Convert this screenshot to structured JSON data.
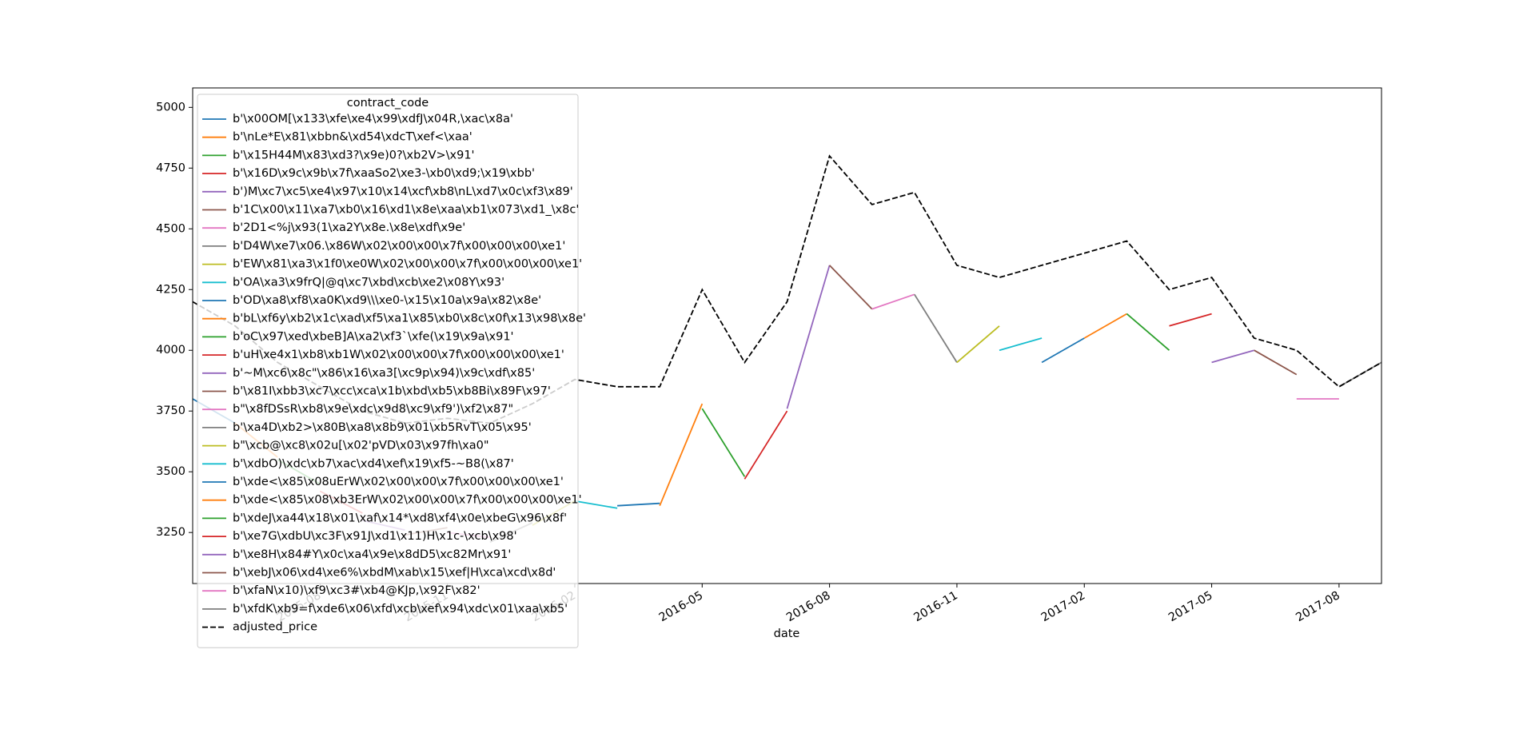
{
  "chart_data": {
    "type": "line",
    "x_label": "date",
    "legend_title": "contract_code",
    "legend": "upper left",
    "xlim": [
      "2015-05",
      "2017-09"
    ],
    "xticks": [
      "2015-08",
      "2015-11",
      "2016-02",
      "2016-05",
      "2016-08",
      "2016-11",
      "2017-02",
      "2017-05",
      "2017-08"
    ],
    "ylim": [
      3040,
      5080
    ],
    "yticks": [
      3250,
      3500,
      3750,
      4000,
      4250,
      4500,
      4750,
      5000
    ],
    "series": [
      {
        "name": "b'\\x00OM[\\x133\\xfe\\xe4\\x99\\xdfJ\\x04R,\\xac\\x8a'",
        "color": "#1f77b4",
        "x": [
          "2015-05",
          "2015-06"
        ],
        "values": [
          3800,
          3700
        ]
      },
      {
        "name": "b'\\nLe*E\\x81\\xbbn&\\xd54\\xdcT\\xef<\\xaa'",
        "color": "#ff7f0e",
        "x": [
          "2015-06",
          "2015-07"
        ],
        "values": [
          3700,
          3560
        ]
      },
      {
        "name": "b'\\x15H44M\\x83\\xd3?\\x9e)0?\\xb2V>\\x91'",
        "color": "#2ca02c",
        "x": [
          "2015-07",
          "2015-08"
        ],
        "values": [
          3550,
          3450
        ]
      },
      {
        "name": "b'\\x16D\\x9c\\x9b\\x7f\\xaaSo2\\xe3-\\xb0\\xd9;\\x19\\xbb'",
        "color": "#d62728",
        "x": [
          "2015-08",
          "2015-09"
        ],
        "values": [
          3420,
          3330
        ]
      },
      {
        "name": "b')M\\xc7\\xc5\\xe4\\x97\\x10\\x14\\xcf\\xb8\\nL\\xd7\\x0c\\xf3\\x89'",
        "color": "#9467bd",
        "x": [
          "2015-09",
          "2015-10"
        ],
        "values": [
          3300,
          3260
        ]
      },
      {
        "name": "b'1C\\x00\\x11\\xa7\\xb0\\x16\\xd1\\x8e\\xaa\\xb1\\x073\\xd1_\\x8c'",
        "color": "#8c564b",
        "x": [
          "2015-10",
          "2015-11"
        ],
        "values": [
          3240,
          3270
        ]
      },
      {
        "name": "b'2D1<%j\\x93(1\\xa2Y\\x8e.\\x8e\\xdf\\x9e'",
        "color": "#e377c2",
        "x": [
          "2015-11",
          "2015-12"
        ],
        "values": [
          3250,
          3230
        ]
      },
      {
        "name": "b'D4W\\xe7\\x06.\\x86W\\x02\\x00\\x00\\x7f\\x00\\x00\\x00\\xe1'",
        "color": "#7f7f7f",
        "x": [
          "2015-12",
          "2016-01"
        ],
        "values": [
          3210,
          3290
        ]
      },
      {
        "name": "b'EW\\x81\\xa3\\x1f0\\xe0W\\x02\\x00\\x00\\x7f\\x00\\x00\\x00\\xe1'",
        "color": "#bcbd22",
        "x": [
          "2016-01",
          "2016-02"
        ],
        "values": [
          3280,
          3380
        ]
      },
      {
        "name": "b'OA\\xa3\\x9frQ|@q\\xc7\\xbd\\xcb\\xe2\\x08Y\\x93'",
        "color": "#17becf",
        "x": [
          "2016-02",
          "2016-03"
        ],
        "values": [
          3380,
          3350
        ]
      },
      {
        "name": "b'OD\\xa8\\xf8\\xa0K\\xd9\\\\\\xe0-\\x15\\x10a\\x9a\\x82\\x8e'",
        "color": "#1f77b4",
        "x": [
          "2016-03",
          "2016-04"
        ],
        "values": [
          3360,
          3370
        ]
      },
      {
        "name": "b'bL\\xf6y\\xb2\\x1c\\xad\\xf5\\xa1\\x85\\xb0\\x8c\\x0f\\x13\\x98\\x8e'",
        "color": "#ff7f0e",
        "x": [
          "2016-04",
          "2016-05"
        ],
        "values": [
          3360,
          3780
        ]
      },
      {
        "name": "b'oC\\x97\\xed\\xbeB]A\\xa2\\xf3`\\xfe(\\x19\\x9a\\x91'",
        "color": "#2ca02c",
        "x": [
          "2016-05",
          "2016-06"
        ],
        "values": [
          3760,
          3480
        ]
      },
      {
        "name": "b'uH\\xe4x1\\xb8\\xb1W\\x02\\x00\\x00\\x7f\\x00\\x00\\x00\\xe1'",
        "color": "#d62728",
        "x": [
          "2016-06",
          "2016-07"
        ],
        "values": [
          3470,
          3750
        ]
      },
      {
        "name": "b'~M\\xc6\\x8c\"\\x86\\x16\\xa3[\\xc9p\\x94)\\x9c\\xdf\\x85'",
        "color": "#9467bd",
        "x": [
          "2016-07",
          "2016-08"
        ],
        "values": [
          3760,
          4350
        ]
      },
      {
        "name": "b'\\x81I\\xbb3\\xc7\\xcc\\xca\\x1b\\xbd\\xb5\\xb8Bi\\x89F\\x97'",
        "color": "#8c564b",
        "x": [
          "2016-08",
          "2016-09"
        ],
        "values": [
          4350,
          4170
        ]
      },
      {
        "name": "b\"\\x8fDSsR\\xb8\\x9e\\xdc\\x9d8\\xc9\\xf9')\\xf2\\x87\"",
        "color": "#e377c2",
        "x": [
          "2016-09",
          "2016-10"
        ],
        "values": [
          4170,
          4230
        ]
      },
      {
        "name": "b'\\xa4D\\xb2>\\x80B\\xa8\\x8b9\\x01\\xb5RvT\\x05\\x95'",
        "color": "#7f7f7f",
        "x": [
          "2016-10",
          "2016-11"
        ],
        "values": [
          4230,
          3950
        ]
      },
      {
        "name": "b\"\\xcb@\\xc8\\x02u[\\x02'pVD\\x03\\x97fh\\xa0\"",
        "color": "#bcbd22",
        "x": [
          "2016-11",
          "2016-12"
        ],
        "values": [
          3950,
          4100
        ]
      },
      {
        "name": "b'\\xdbO)\\xdc\\xb7\\xac\\xd4\\xef\\x19\\xf5-~B8(\\x87'",
        "color": "#17becf",
        "x": [
          "2016-12",
          "2017-01"
        ],
        "values": [
          4000,
          4050
        ]
      },
      {
        "name": "b'\\xde<\\x85\\x08uErW\\x02\\x00\\x00\\x7f\\x00\\x00\\x00\\xe1'",
        "color": "#1f77b4",
        "x": [
          "2017-01",
          "2017-02"
        ],
        "values": [
          3950,
          4050
        ]
      },
      {
        "name": "b'\\xde<\\x85\\x08\\xb3ErW\\x02\\x00\\x00\\x7f\\x00\\x00\\x00\\xe1'",
        "color": "#ff7f0e",
        "x": [
          "2017-02",
          "2017-03"
        ],
        "values": [
          4050,
          4150
        ]
      },
      {
        "name": "b'\\xdeJ\\xa44\\x18\\x01\\xaf\\x14*\\xd8\\xf4\\x0e\\xbeG\\x96\\x8f'",
        "color": "#2ca02c",
        "x": [
          "2017-03",
          "2017-04"
        ],
        "values": [
          4150,
          4000
        ]
      },
      {
        "name": "b'\\xe7G\\xdbU\\xc3F\\x91J\\xd1\\x11)H\\x1c-\\xcb\\x98'",
        "color": "#d62728",
        "x": [
          "2017-04",
          "2017-05"
        ],
        "values": [
          4100,
          4150
        ]
      },
      {
        "name": "b'\\xe8H\\x84#Y\\x0c\\xa4\\x9e\\x8dD5\\xc82Mr\\x91'",
        "color": "#9467bd",
        "x": [
          "2017-05",
          "2017-06"
        ],
        "values": [
          3950,
          4000
        ]
      },
      {
        "name": "b'\\xebJ\\x06\\xd4\\xe6%\\xbdM\\xab\\x15\\xef|H\\xca\\xcd\\x8d'",
        "color": "#8c564b",
        "x": [
          "2017-06",
          "2017-07"
        ],
        "values": [
          4000,
          3900
        ]
      },
      {
        "name": "b'\\xfaN\\x10)\\xf9\\xc3#\\xb4@KJp,\\x92F\\x82'",
        "color": "#e377c2",
        "x": [
          "2017-07",
          "2017-08"
        ],
        "values": [
          3800,
          3800
        ]
      },
      {
        "name": "b'\\xfdK\\xb9=f\\xde6\\x06\\xfd\\xcb\\xef\\x94\\xdc\\x01\\xaa\\xb5'",
        "color": "#7f7f7f",
        "x": [
          "2017-08",
          "2017-09"
        ],
        "values": [
          3850,
          3950
        ]
      },
      {
        "name": "adjusted_price",
        "color": "#000000",
        "linestyle": "dashed",
        "x": [
          "2015-05",
          "2015-06",
          "2015-07",
          "2015-08",
          "2015-09",
          "2015-10",
          "2015-11",
          "2015-12",
          "2016-01",
          "2016-02",
          "2016-03",
          "2016-04",
          "2016-05",
          "2016-06",
          "2016-07",
          "2016-08",
          "2016-09",
          "2016-10",
          "2016-11",
          "2016-12",
          "2017-01",
          "2017-02",
          "2017-03",
          "2017-04",
          "2017-05",
          "2017-06",
          "2017-07",
          "2017-08",
          "2017-09"
        ],
        "values": [
          4200,
          4100,
          3950,
          3850,
          3750,
          3700,
          3720,
          3700,
          3780,
          3880,
          3850,
          3850,
          4250,
          3950,
          4200,
          4800,
          4600,
          4650,
          4350,
          4300,
          4350,
          4400,
          4450,
          4250,
          4300,
          4050,
          4000,
          3850,
          3950
        ]
      }
    ]
  }
}
